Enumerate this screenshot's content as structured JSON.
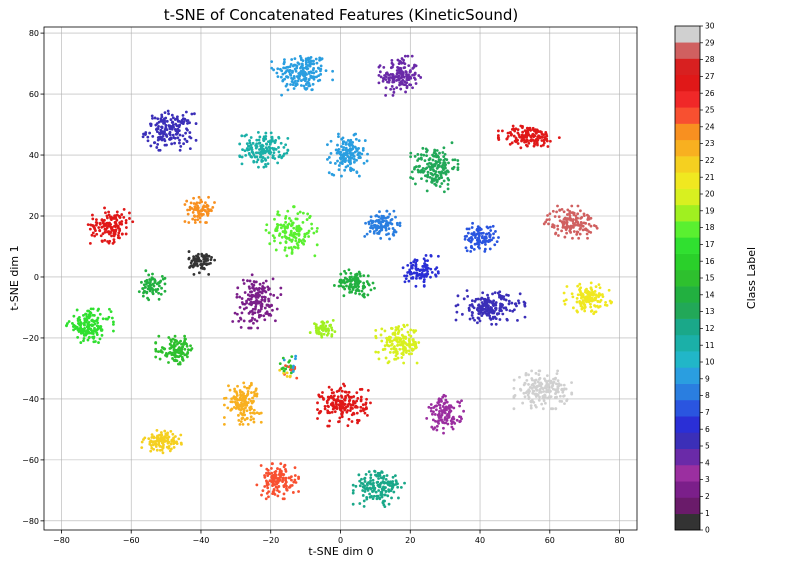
{
  "chart_data": {
    "type": "scatter",
    "title": "t-SNE of Concatenated Features (KineticSound)",
    "xlabel": "t-SNE dim 0",
    "ylabel": "t-SNE dim 1",
    "xlim": [
      -85,
      85
    ],
    "ylim": [
      -83,
      82
    ],
    "xticks": [
      -80,
      -60,
      -40,
      -20,
      0,
      20,
      40,
      60,
      80
    ],
    "yticks": [
      -80,
      -60,
      -40,
      -20,
      0,
      20,
      40,
      60,
      80
    ],
    "grid": true,
    "colorbar": {
      "label": "Class Label",
      "min": 0,
      "max": 30,
      "ticks": [
        0,
        1,
        2,
        3,
        4,
        5,
        6,
        7,
        8,
        9,
        10,
        11,
        12,
        13,
        14,
        15,
        16,
        17,
        18,
        19,
        20,
        21,
        22,
        23,
        24,
        25,
        26,
        27,
        28,
        29,
        30
      ]
    },
    "class_colors": [
      "#333333",
      "#6a1b6a",
      "#7b1f8a",
      "#9b2fa0",
      "#6a2aa8",
      "#3b2fb8",
      "#2a2fd6",
      "#2a55e0",
      "#2a7ee0",
      "#2a9ee0",
      "#21b6c8",
      "#1bb0a8",
      "#1aa889",
      "#22a858",
      "#22b040",
      "#2ec02e",
      "#2ad02a",
      "#30e030",
      "#5af030",
      "#a0f020",
      "#d8f020",
      "#f0e820",
      "#f5d020",
      "#f8b020",
      "#f89020",
      "#f85030",
      "#f02828",
      "#e01818",
      "#d82020",
      "#d06060",
      "#d0d0d0"
    ],
    "clusters": [
      {
        "label": 9,
        "x": -11,
        "y": 67,
        "sx": 3.8,
        "sy": 3.2,
        "n": 180
      },
      {
        "label": 4,
        "x": 17,
        "y": 66,
        "sx": 2.6,
        "sy": 2.8,
        "n": 150
      },
      {
        "label": 5,
        "x": -49,
        "y": 48,
        "sx": 3.3,
        "sy": 2.8,
        "n": 170
      },
      {
        "label": 11,
        "x": -22,
        "y": 42,
        "sx": 3.0,
        "sy": 2.6,
        "n": 150
      },
      {
        "label": 9,
        "x": 2,
        "y": 40,
        "sx": 2.5,
        "sy": 3.0,
        "n": 140
      },
      {
        "label": 13,
        "x": 27,
        "y": 36,
        "sx": 3.0,
        "sy": 3.5,
        "n": 170
      },
      {
        "label": 27,
        "x": 54,
        "y": 46,
        "sx": 3.8,
        "sy": 1.7,
        "n": 150
      },
      {
        "label": 27,
        "x": -66,
        "y": 17,
        "sx": 2.8,
        "sy": 2.6,
        "n": 140
      },
      {
        "label": 24,
        "x": -40,
        "y": 22,
        "sx": 2.0,
        "sy": 1.8,
        "n": 80
      },
      {
        "label": 18,
        "x": -14,
        "y": 15,
        "sx": 3.2,
        "sy": 3.5,
        "n": 150
      },
      {
        "label": 8,
        "x": 12,
        "y": 17,
        "sx": 2.2,
        "sy": 2.0,
        "n": 110
      },
      {
        "label": 7,
        "x": 40,
        "y": 13,
        "sx": 2.3,
        "sy": 2.0,
        "n": 100
      },
      {
        "label": 29,
        "x": 66,
        "y": 18,
        "sx": 3.3,
        "sy": 2.3,
        "n": 140
      },
      {
        "label": 0,
        "x": -40,
        "y": 5,
        "sx": 1.7,
        "sy": 1.8,
        "n": 80
      },
      {
        "label": 14,
        "x": -54,
        "y": -3,
        "sx": 1.6,
        "sy": 2.2,
        "n": 70
      },
      {
        "label": 2,
        "x": -24,
        "y": -8,
        "sx": 3.0,
        "sy": 3.8,
        "n": 170
      },
      {
        "label": 14,
        "x": 4,
        "y": -2,
        "sx": 2.5,
        "sy": 2.0,
        "n": 110
      },
      {
        "label": 6,
        "x": 23,
        "y": 2,
        "sx": 2.2,
        "sy": 2.2,
        "n": 100
      },
      {
        "label": 5,
        "x": 43,
        "y": -10,
        "sx": 4.3,
        "sy": 2.4,
        "n": 190
      },
      {
        "label": 21,
        "x": 71,
        "y": -7,
        "sx": 3.0,
        "sy": 2.2,
        "n": 130
      },
      {
        "label": 17,
        "x": -72,
        "y": -16,
        "sx": 3.0,
        "sy": 2.4,
        "n": 150
      },
      {
        "label": 19,
        "x": -5,
        "y": -17,
        "sx": 1.6,
        "sy": 1.2,
        "n": 60
      },
      {
        "label": 20,
        "x": 17,
        "y": -22,
        "sx": 3.0,
        "sy": 2.7,
        "n": 160
      },
      {
        "label": 15,
        "x": -47,
        "y": -24,
        "sx": 2.6,
        "sy": 2.0,
        "n": 110
      },
      {
        "label": 30,
        "x": 58,
        "y": -37,
        "sx": 3.6,
        "sy": 2.7,
        "n": 180
      },
      {
        "label": 23,
        "x": -28,
        "y": -41,
        "sx": 2.3,
        "sy": 3.2,
        "n": 140
      },
      {
        "label": 27,
        "x": 1,
        "y": -42,
        "sx": 3.3,
        "sy": 3.0,
        "n": 180
      },
      {
        "label": 3,
        "x": 30,
        "y": -45,
        "sx": 2.3,
        "sy": 2.7,
        "n": 120
      },
      {
        "label": 22,
        "x": -51,
        "y": -54,
        "sx": 2.6,
        "sy": 1.6,
        "n": 100
      },
      {
        "label": 25,
        "x": -18,
        "y": -67,
        "sx": 2.6,
        "sy": 2.5,
        "n": 130
      },
      {
        "label": 12,
        "x": 11,
        "y": -69,
        "sx": 3.2,
        "sy": 2.8,
        "n": 160
      },
      {
        "label": 15,
        "x": -15,
        "y": -29,
        "sx": 1.5,
        "sy": 1.7,
        "n": 18
      },
      {
        "label": 25,
        "x": -15,
        "y": -31,
        "sx": 1.3,
        "sy": 1.4,
        "n": 8
      },
      {
        "label": 9,
        "x": -14,
        "y": -28,
        "sx": 1.2,
        "sy": 1.3,
        "n": 6
      },
      {
        "label": 22,
        "x": -15,
        "y": -32,
        "sx": 1.2,
        "sy": 1.0,
        "n": 6
      }
    ]
  }
}
